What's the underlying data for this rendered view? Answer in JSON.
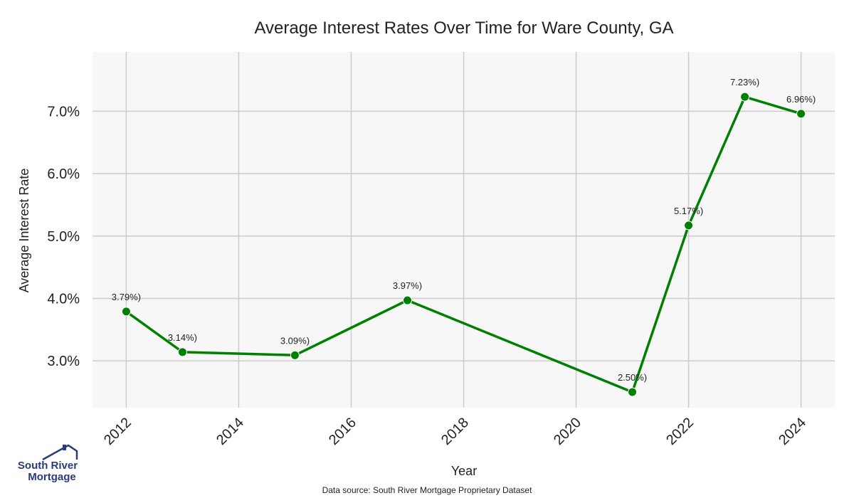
{
  "chart_data": {
    "type": "line",
    "title": "Average Interest Rates Over Time for Ware County, GA",
    "xlabel": "Year",
    "ylabel": "Average Interest Rate",
    "x": [
      2012,
      2013,
      2015,
      2017,
      2021,
      2022,
      2023,
      2024
    ],
    "values": [
      3.79,
      3.14,
      3.09,
      3.97,
      2.5,
      5.17,
      7.23,
      6.96
    ],
    "data_labels": [
      "3.79%)",
      "3.14%)",
      "3.09%)",
      "3.97%)",
      "2.50%)",
      "5.17%)",
      "7.23%)",
      "6.96%)"
    ],
    "x_ticks": [
      2012,
      2014,
      2016,
      2018,
      2020,
      2022,
      2024
    ],
    "y_ticks": [
      3.0,
      4.0,
      5.0,
      6.0,
      7.0
    ],
    "y_tick_labels": [
      "3.0%",
      "4.0%",
      "5.0%",
      "6.0%",
      "7.0%"
    ],
    "xlim": [
      2011.4,
      2024.6
    ],
    "ylim": [
      2.25,
      7.95
    ],
    "grid": true,
    "line_color": "#008000",
    "background_color": "#f7f7f7",
    "grid_color": "#cccccc"
  },
  "footer": {
    "source": "Data source: South River Mortgage Proprietary Dataset"
  },
  "logo": {
    "line1": "South River",
    "line2": "Mortgage",
    "color": "#2b3a7a"
  }
}
